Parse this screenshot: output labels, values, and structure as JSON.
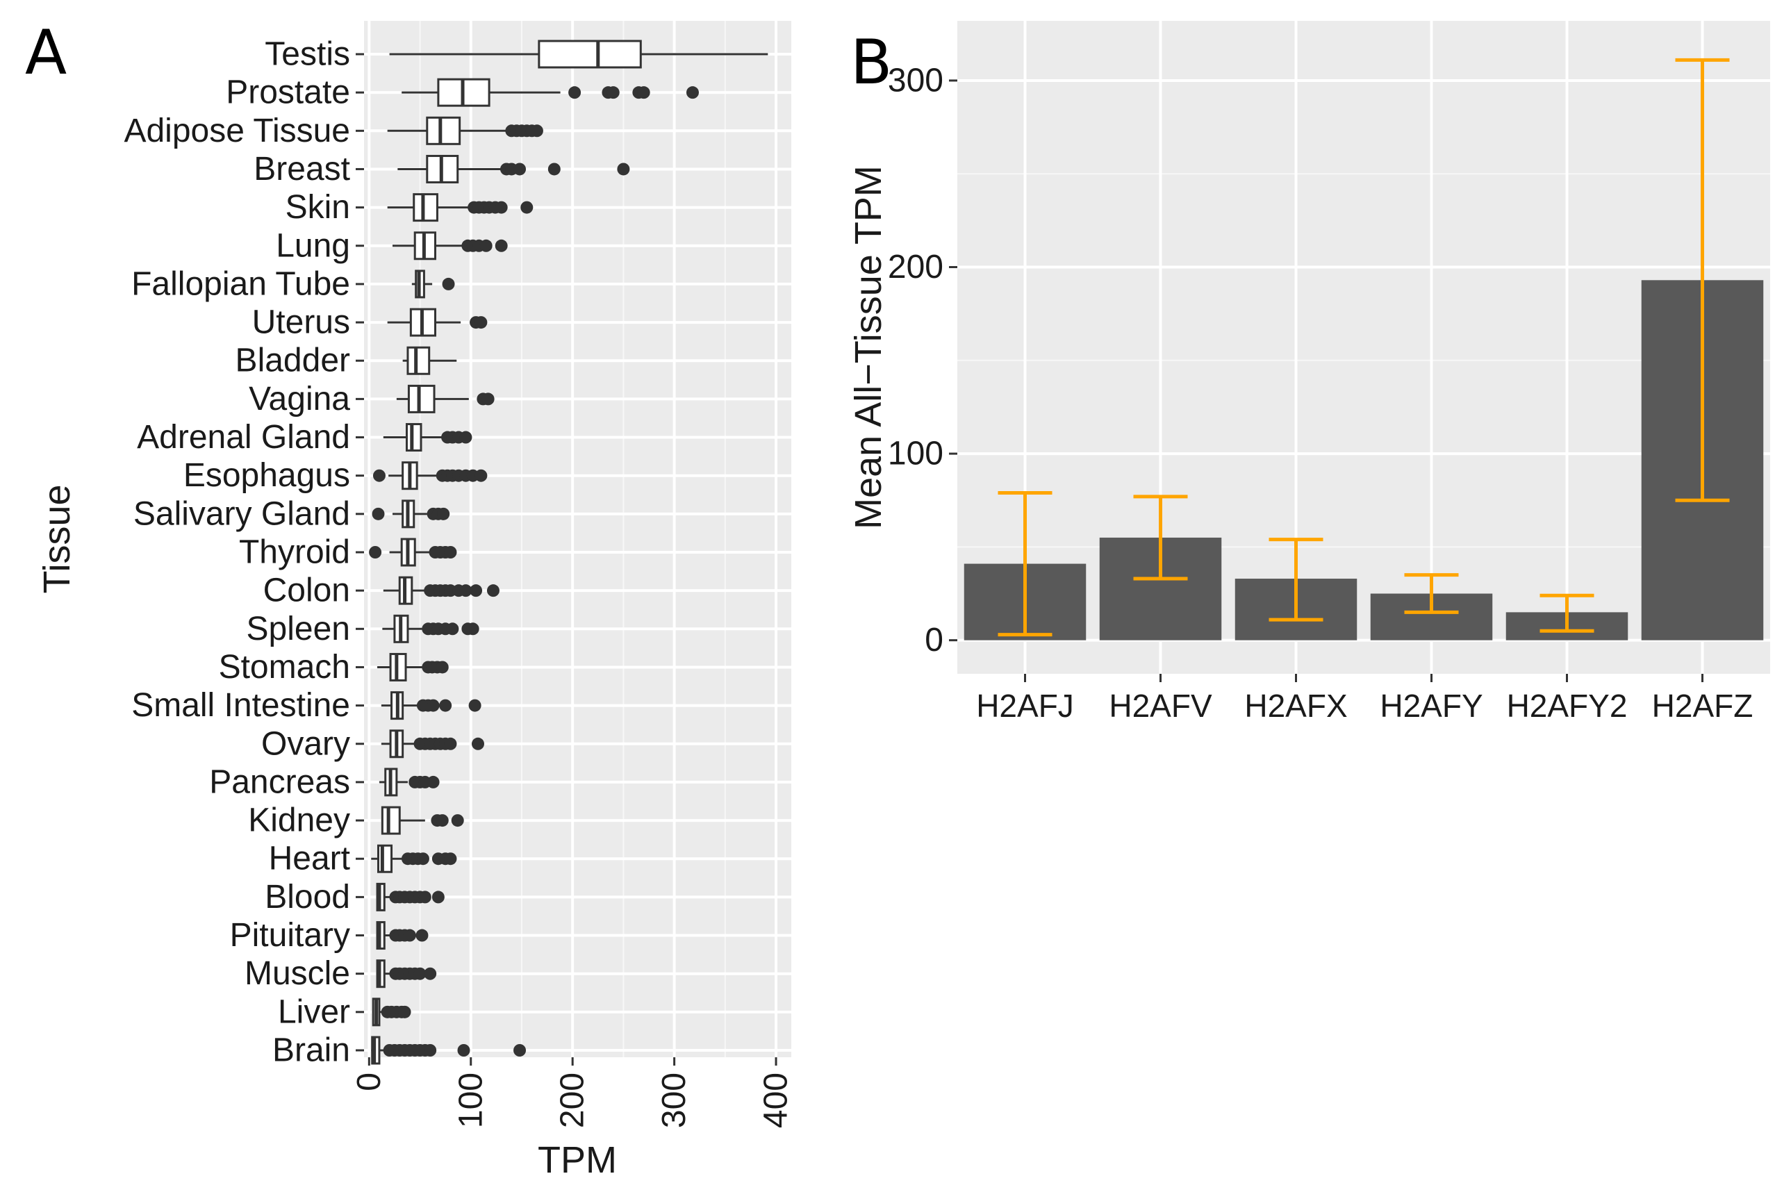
{
  "figure": {
    "panel_a_label": "A",
    "panel_b_label": "B"
  },
  "chart_data": [
    {
      "type": "box",
      "orientation": "horizontal",
      "panel": "A",
      "title": "",
      "xlabel": "TPM",
      "ylabel": "Tissue",
      "xlim": [
        -5,
        415
      ],
      "xticks": [
        0,
        100,
        200,
        300,
        400
      ],
      "xtick_labels": [
        "0",
        "100",
        "200",
        "300",
        "400"
      ],
      "grid": true,
      "colors": {
        "panel_bg": "#ebebeb",
        "grid": "#ffffff",
        "box_line": "#333333",
        "box_fill": "#ffffff",
        "outlier": "#333333"
      },
      "categories": [
        "Testis",
        "Prostate",
        "Adipose Tissue",
        "Breast",
        "Skin",
        "Lung",
        "Fallopian Tube",
        "Uterus",
        "Bladder",
        "Vagina",
        "Adrenal Gland",
        "Esophagus",
        "Salivary Gland",
        "Thyroid",
        "Colon",
        "Spleen",
        "Stomach",
        "Small Intestine",
        "Ovary",
        "Pancreas",
        "Kidney",
        "Heart",
        "Blood",
        "Pituitary",
        "Muscle",
        "Liver",
        "Brain"
      ],
      "boxes": [
        {
          "tissue": "Testis",
          "min": 20,
          "q1": 167,
          "median": 225,
          "q3": 267,
          "max": 392,
          "outliers": []
        },
        {
          "tissue": "Prostate",
          "min": 32,
          "q1": 68,
          "median": 92,
          "q3": 118,
          "max": 188,
          "outliers": [
            202,
            235,
            240,
            265,
            270,
            318
          ]
        },
        {
          "tissue": "Adipose Tissue",
          "min": 18,
          "q1": 57,
          "median": 70,
          "q3": 89,
          "max": 135,
          "outliers": [
            140,
            145,
            150,
            155,
            160,
            165
          ]
        },
        {
          "tissue": "Breast",
          "min": 28,
          "q1": 57,
          "median": 71,
          "q3": 87,
          "max": 130,
          "outliers": [
            135,
            140,
            148,
            182,
            250
          ]
        },
        {
          "tissue": "Skin",
          "min": 18,
          "q1": 44,
          "median": 53,
          "q3": 67,
          "max": 98,
          "outliers": [
            103,
            108,
            113,
            118,
            124,
            130,
            155
          ]
        },
        {
          "tissue": "Lung",
          "min": 23,
          "q1": 45,
          "median": 54,
          "q3": 65,
          "max": 92,
          "outliers": [
            97,
            102,
            108,
            115,
            130
          ]
        },
        {
          "tissue": "Fallopian Tube",
          "min": 42,
          "q1": 46,
          "median": 49,
          "q3": 54,
          "max": 62,
          "outliers": [
            78
          ]
        },
        {
          "tissue": "Uterus",
          "min": 18,
          "q1": 41,
          "median": 52,
          "q3": 65,
          "max": 90,
          "outliers": [
            105,
            110
          ]
        },
        {
          "tissue": "Bladder",
          "min": 33,
          "q1": 38,
          "median": 46,
          "q3": 59,
          "max": 86,
          "outliers": []
        },
        {
          "tissue": "Vagina",
          "min": 27,
          "q1": 39,
          "median": 49,
          "q3": 64,
          "max": 98,
          "outliers": [
            112,
            117
          ]
        },
        {
          "tissue": "Adrenal Gland",
          "min": 14,
          "q1": 37,
          "median": 42,
          "q3": 51,
          "max": 72,
          "outliers": [
            77,
            82,
            88,
            95
          ]
        },
        {
          "tissue": "Esophagus",
          "min": 19,
          "q1": 33,
          "median": 40,
          "q3": 47,
          "max": 67,
          "outliers": [
            10,
            72,
            77,
            82,
            88,
            95,
            102,
            110
          ]
        },
        {
          "tissue": "Salivary Gland",
          "min": 23,
          "q1": 33,
          "median": 38,
          "q3": 44,
          "max": 57,
          "outliers": [
            9,
            63,
            68,
            73
          ]
        },
        {
          "tissue": "Thyroid",
          "min": 20,
          "q1": 32,
          "median": 38,
          "q3": 45,
          "max": 60,
          "outliers": [
            6,
            65,
            70,
            75,
            80
          ]
        },
        {
          "tissue": "Colon",
          "min": 14,
          "q1": 30,
          "median": 35,
          "q3": 42,
          "max": 55,
          "outliers": [
            60,
            65,
            70,
            75,
            80,
            88,
            95,
            105,
            122
          ]
        },
        {
          "tissue": "Spleen",
          "min": 13,
          "q1": 25,
          "median": 31,
          "q3": 38,
          "max": 52,
          "outliers": [
            58,
            63,
            68,
            75,
            82,
            97,
            102
          ]
        },
        {
          "tissue": "Stomach",
          "min": 8,
          "q1": 21,
          "median": 27,
          "q3": 36,
          "max": 52,
          "outliers": [
            58,
            62,
            67,
            72
          ]
        },
        {
          "tissue": "Small Intestine",
          "min": 12,
          "q1": 22,
          "median": 28,
          "q3": 33,
          "max": 48,
          "outliers": [
            53,
            58,
            63,
            75,
            104
          ]
        },
        {
          "tissue": "Ovary",
          "min": 12,
          "q1": 21,
          "median": 27,
          "q3": 33,
          "max": 45,
          "outliers": [
            50,
            55,
            60,
            65,
            70,
            75,
            80,
            107
          ]
        },
        {
          "tissue": "Pancreas",
          "min": 10,
          "q1": 16,
          "median": 21,
          "q3": 27,
          "max": 38,
          "outliers": [
            45,
            50,
            55,
            63
          ]
        },
        {
          "tissue": "Kidney",
          "min": 12,
          "q1": 13,
          "median": 19,
          "q3": 30,
          "max": 55,
          "outliers": [
            67,
            72,
            87
          ]
        },
        {
          "tissue": "Heart",
          "min": 2,
          "q1": 9,
          "median": 13,
          "q3": 22,
          "max": 33,
          "outliers": [
            38,
            43,
            48,
            53,
            68,
            75,
            80
          ]
        },
        {
          "tissue": "Blood",
          "min": 7,
          "q1": 8,
          "median": 10,
          "q3": 15,
          "max": 22,
          "outliers": [
            26,
            30,
            35,
            40,
            45,
            50,
            55,
            68
          ]
        },
        {
          "tissue": "Pituitary",
          "min": 7,
          "q1": 8,
          "median": 10,
          "q3": 15,
          "max": 22,
          "outliers": [
            26,
            30,
            35,
            40,
            52
          ]
        },
        {
          "tissue": "Muscle",
          "min": 7,
          "q1": 8,
          "median": 10,
          "q3": 15,
          "max": 22,
          "outliers": [
            26,
            30,
            35,
            40,
            45,
            50,
            60
          ]
        },
        {
          "tissue": "Liver",
          "min": 3,
          "q1": 4,
          "median": 7,
          "q3": 10,
          "max": 14,
          "outliers": [
            18,
            22,
            27,
            32,
            35
          ]
        },
        {
          "tissue": "Brain",
          "min": 2,
          "q1": 3,
          "median": 5,
          "q3": 10,
          "max": 17,
          "outliers": [
            20,
            25,
            30,
            35,
            40,
            45,
            50,
            55,
            60,
            93,
            148
          ]
        }
      ]
    },
    {
      "type": "bar",
      "panel": "B",
      "title": "",
      "xlabel": "",
      "ylabel": "Mean All−Tissue TPM",
      "ylim": [
        -18,
        332
      ],
      "yticks": [
        0,
        100,
        200,
        300
      ],
      "ytick_labels": [
        "0",
        "100",
        "200",
        "300"
      ],
      "grid": true,
      "colors": {
        "panel_bg": "#ebebeb",
        "grid": "#ffffff",
        "bar": "#595959",
        "error_bar": "#ffa500"
      },
      "categories": [
        "H2AFJ",
        "H2AFV",
        "H2AFX",
        "H2AFY",
        "H2AFY2",
        "H2AFZ"
      ],
      "values": [
        41,
        55,
        33,
        25,
        15,
        193
      ],
      "error_low": [
        3,
        33,
        11,
        15,
        5,
        75
      ],
      "error_high": [
        79,
        77,
        54,
        35,
        24,
        311
      ]
    }
  ]
}
